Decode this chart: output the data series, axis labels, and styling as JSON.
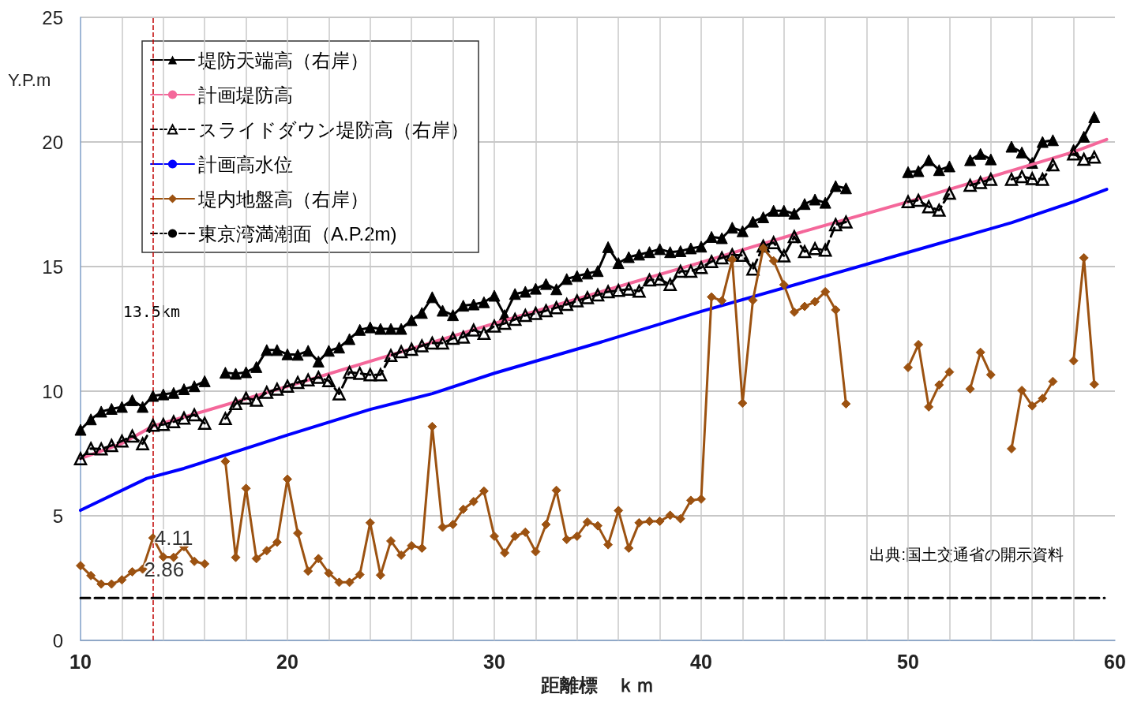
{
  "chart_data": {
    "type": "line",
    "xlabel": "距離標　ｋｍ",
    "ylabel": "Y.P.m",
    "x": [
      10,
      10.5,
      11,
      11.5,
      12,
      12.5,
      13,
      13.5,
      14,
      14.5,
      15,
      15.5,
      16,
      16.5,
      17,
      17.5,
      18,
      18.5,
      19,
      19.5,
      20,
      20.5,
      21,
      21.5,
      22,
      22.5,
      23,
      23.5,
      24,
      24.5,
      25,
      25.5,
      26,
      26.5,
      27,
      27.5,
      28,
      28.5,
      29,
      29.5,
      30,
      30.5,
      31,
      31.5,
      32,
      32.5,
      33,
      33.5,
      34,
      34.5,
      35,
      35.5,
      36,
      36.5,
      37,
      37.5,
      38,
      38.5,
      39,
      39.5,
      40,
      40.5,
      41,
      41.5,
      42,
      42.5,
      43,
      43.5,
      44,
      44.5,
      45,
      45.5,
      46,
      46.5,
      47,
      47.5,
      48,
      48.5,
      49,
      49.5,
      50,
      50.5,
      51,
      51.5,
      52,
      52.5,
      53,
      53.5,
      54,
      54.5,
      55,
      55.5,
      56,
      56.5,
      57,
      57.5,
      58,
      58.5,
      59
    ],
    "series": [
      {
        "name": "堤防天端高（右岸）",
        "color": "#000000",
        "marker": "triangle",
        "line_style": "solid",
        "values": [
          8.45,
          8.87,
          9.18,
          9.29,
          9.37,
          9.64,
          9.37,
          9.81,
          9.87,
          9.93,
          10.08,
          10.2,
          10.4,
          null,
          10.74,
          10.7,
          10.76,
          10.97,
          11.65,
          11.65,
          11.48,
          11.46,
          11.62,
          11.19,
          11.62,
          11.75,
          12.09,
          12.46,
          12.56,
          12.5,
          12.5,
          12.5,
          12.85,
          13.14,
          13.77,
          13.23,
          13.05,
          13.43,
          13.48,
          13.57,
          13.83,
          13.05,
          13.9,
          13.99,
          14.11,
          14.3,
          14.09,
          14.5,
          14.62,
          14.72,
          14.82,
          15.78,
          15.14,
          15.38,
          15.48,
          15.58,
          15.7,
          15.58,
          15.62,
          15.73,
          15.8,
          16.19,
          16.14,
          16.56,
          16.42,
          16.8,
          16.98,
          17.24,
          17.24,
          17.12,
          17.51,
          17.69,
          17.56,
          18.23,
          18.14,
          null,
          null,
          null,
          null,
          null,
          18.79,
          18.83,
          19.27,
          18.87,
          19.02,
          null,
          19.27,
          19.52,
          19.3,
          null,
          19.81,
          19.58,
          19.16,
          20.0,
          20.07,
          null,
          19.68,
          20.21,
          21.0
        ]
      },
      {
        "name": "計画堤防高",
        "color": "#f4679a",
        "marker": "none",
        "line_style": "solid",
        "x": [
          10,
          12,
          13.5,
          16,
          20,
          25,
          30,
          35,
          40,
          45,
          50,
          55,
          58,
          59.6
        ],
        "values": [
          7.3,
          7.9,
          8.6,
          9.2,
          10.19,
          11.45,
          12.72,
          13.95,
          15.17,
          16.42,
          17.6,
          18.85,
          19.6,
          20.1
        ]
      },
      {
        "name": "スライドダウン堤防高（右岸）",
        "color": "#000000",
        "marker": "triangle",
        "line_style": "dashed",
        "values": [
          7.29,
          7.7,
          7.68,
          7.82,
          8.0,
          8.2,
          7.89,
          8.63,
          8.66,
          8.77,
          8.92,
          9.05,
          8.71,
          null,
          8.9,
          9.5,
          9.72,
          9.64,
          9.95,
          10.08,
          10.2,
          10.35,
          10.45,
          10.55,
          10.42,
          9.89,
          10.76,
          10.71,
          10.66,
          10.66,
          11.43,
          11.58,
          11.68,
          11.82,
          11.93,
          11.93,
          12.12,
          12.17,
          12.45,
          12.32,
          12.61,
          12.72,
          12.88,
          13.04,
          13.12,
          13.23,
          13.35,
          13.48,
          13.62,
          13.75,
          13.86,
          13.99,
          14.04,
          14.09,
          14.01,
          14.46,
          14.49,
          14.28,
          14.81,
          14.81,
          14.96,
          15.2,
          15.35,
          15.47,
          15.45,
          14.9,
          15.82,
          15.96,
          15.43,
          16.2,
          15.6,
          15.72,
          15.66,
          16.68,
          16.79,
          null,
          null,
          null,
          null,
          null,
          17.6,
          17.66,
          17.4,
          17.26,
          17.94,
          null,
          18.26,
          18.37,
          18.5,
          null,
          18.5,
          18.61,
          18.53,
          18.5,
          19.08,
          null,
          19.52,
          19.3,
          19.39
        ]
      },
      {
        "name": "計画高水位",
        "color": "#0000ff",
        "marker": "none",
        "line_style": "solid",
        "x": [
          10,
          13.2,
          15,
          20,
          24,
          27,
          30,
          35,
          40,
          45,
          50,
          55,
          58,
          59.6
        ],
        "values": [
          5.22,
          6.5,
          6.9,
          8.24,
          9.27,
          9.9,
          10.72,
          11.93,
          13.2,
          14.38,
          15.57,
          16.76,
          17.6,
          18.1
        ]
      },
      {
        "name": "堤内地盤高（右岸）",
        "color": "#9c5211",
        "marker": "diamond",
        "line_style": "solid",
        "values": [
          3.0,
          2.6,
          2.26,
          2.26,
          2.43,
          2.75,
          2.86,
          4.11,
          3.35,
          3.33,
          3.76,
          3.17,
          3.07,
          null,
          7.18,
          3.33,
          6.1,
          3.28,
          3.6,
          3.94,
          6.47,
          4.3,
          2.78,
          3.28,
          2.7,
          2.33,
          2.33,
          2.64,
          4.72,
          2.62,
          3.99,
          3.42,
          3.8,
          3.7,
          8.58,
          4.54,
          4.65,
          5.26,
          5.57,
          5.99,
          4.18,
          3.51,
          4.18,
          4.34,
          3.56,
          4.65,
          6.02,
          4.05,
          4.18,
          4.75,
          4.6,
          3.84,
          5.21,
          3.7,
          4.72,
          4.78,
          4.78,
          5.02,
          4.88,
          5.62,
          5.67,
          13.78,
          13.63,
          15.28,
          9.52,
          13.65,
          15.74,
          15.23,
          14.27,
          13.17,
          13.4,
          13.59,
          13.99,
          13.26,
          9.49,
          null,
          null,
          null,
          null,
          null,
          10.95,
          11.87,
          9.37,
          10.25,
          10.77,
          null,
          10.09,
          11.56,
          10.66,
          null,
          7.69,
          10.03,
          9.41,
          9.71,
          10.39,
          null,
          11.22,
          15.35,
          10.28
        ]
      },
      {
        "name": "東京湾満潮面（A.P.2m)",
        "color": "#000000",
        "marker": "none",
        "line_style": "dashed",
        "x": [
          10,
          59.5
        ],
        "values": [
          1.7,
          1.7
        ]
      }
    ],
    "annotations": [
      {
        "text": "4.11",
        "x": 13.5,
        "y": 4.11
      },
      {
        "text": "2.86",
        "x": 13,
        "y": 2.86
      },
      "出典:国土交通省の開示資料"
    ],
    "ref_lines": [
      {
        "axis": "x",
        "value": 13.5,
        "label": "13.5km",
        "color": "#c00000",
        "line_style": "dashed"
      }
    ],
    "xlim": [
      10,
      60
    ],
    "xticks": [
      10,
      {
        "value": 12,
        "label": null
      },
      {
        "value": 14,
        "label": null
      },
      {
        "value": 16,
        "label": null
      },
      {
        "value": 18,
        "label": null
      },
      20,
      {
        "value": 22,
        "label": null
      },
      {
        "value": 24,
        "label": null
      },
      {
        "value": 26,
        "label": null
      },
      {
        "value": 28,
        "label": null
      },
      30,
      {
        "value": 32,
        "label": null
      },
      {
        "value": 34,
        "label": null
      },
      {
        "value": 36,
        "label": null
      },
      {
        "value": 38,
        "label": null
      },
      40,
      {
        "value": 42,
        "label": null
      },
      {
        "value": 44,
        "label": null
      },
      {
        "value": 46,
        "label": null
      },
      {
        "value": 48,
        "label": null
      },
      50,
      {
        "value": 52,
        "label": null
      },
      {
        "value": 54,
        "label": null
      },
      {
        "value": 56,
        "label": null
      },
      {
        "value": 58,
        "label": null
      },
      60
    ],
    "ylim": [
      0,
      25
    ],
    "yticks": [
      0,
      5,
      10,
      15,
      20,
      25
    ],
    "grid": true,
    "legend": "top left"
  }
}
